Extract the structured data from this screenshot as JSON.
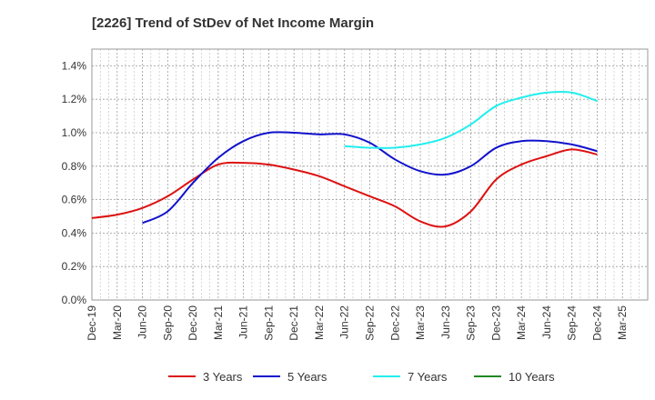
{
  "chart_data": {
    "type": "line",
    "title": "[2226]  Trend of StDev of Net Income Margin",
    "xlabel": "",
    "ylabel": "",
    "ylim": [
      0,
      1.5
    ],
    "y_ticks": [
      "0.0%",
      "0.2%",
      "0.4%",
      "0.6%",
      "0.8%",
      "1.0%",
      "1.2%",
      "1.4%"
    ],
    "y_tick_values": [
      0,
      0.2,
      0.4,
      0.6,
      0.8,
      1.0,
      1.2,
      1.4
    ],
    "categories": [
      "Dec-19",
      "Mar-20",
      "Jun-20",
      "Sep-20",
      "Dec-20",
      "Mar-21",
      "Jun-21",
      "Sep-21",
      "Dec-21",
      "Mar-22",
      "Jun-22",
      "Sep-22",
      "Dec-22",
      "Mar-23",
      "Jun-23",
      "Sep-23",
      "Dec-23",
      "Mar-24",
      "Jun-24",
      "Sep-24",
      "Dec-24",
      "Mar-25"
    ],
    "grid": true,
    "legend_position": "bottom",
    "series": [
      {
        "name": "3 Years",
        "color": "#dd1111",
        "values": [
          0.49,
          0.51,
          0.55,
          0.62,
          0.72,
          0.81,
          0.82,
          0.81,
          0.78,
          0.74,
          0.68,
          0.62,
          0.56,
          0.47,
          0.44,
          0.53,
          0.72,
          0.81,
          0.86,
          0.9,
          0.87,
          null
        ]
      },
      {
        "name": "5 Years",
        "color": "#1111cc",
        "values": [
          null,
          null,
          0.46,
          0.53,
          0.7,
          0.85,
          0.95,
          1.0,
          1.0,
          0.99,
          0.99,
          0.94,
          0.84,
          0.77,
          0.75,
          0.8,
          0.91,
          0.95,
          0.95,
          0.93,
          0.89,
          null
        ]
      },
      {
        "name": "7 Years",
        "color": "#22eeee",
        "values": [
          null,
          null,
          null,
          null,
          null,
          null,
          null,
          null,
          null,
          null,
          0.92,
          0.91,
          0.91,
          0.93,
          0.97,
          1.05,
          1.16,
          1.21,
          1.24,
          1.24,
          1.19,
          null
        ]
      },
      {
        "name": "10 Years",
        "color": "#228822",
        "values": [
          null,
          null,
          null,
          null,
          null,
          null,
          null,
          null,
          null,
          null,
          null,
          null,
          null,
          null,
          null,
          null,
          null,
          null,
          null,
          null,
          null,
          null
        ]
      }
    ]
  }
}
